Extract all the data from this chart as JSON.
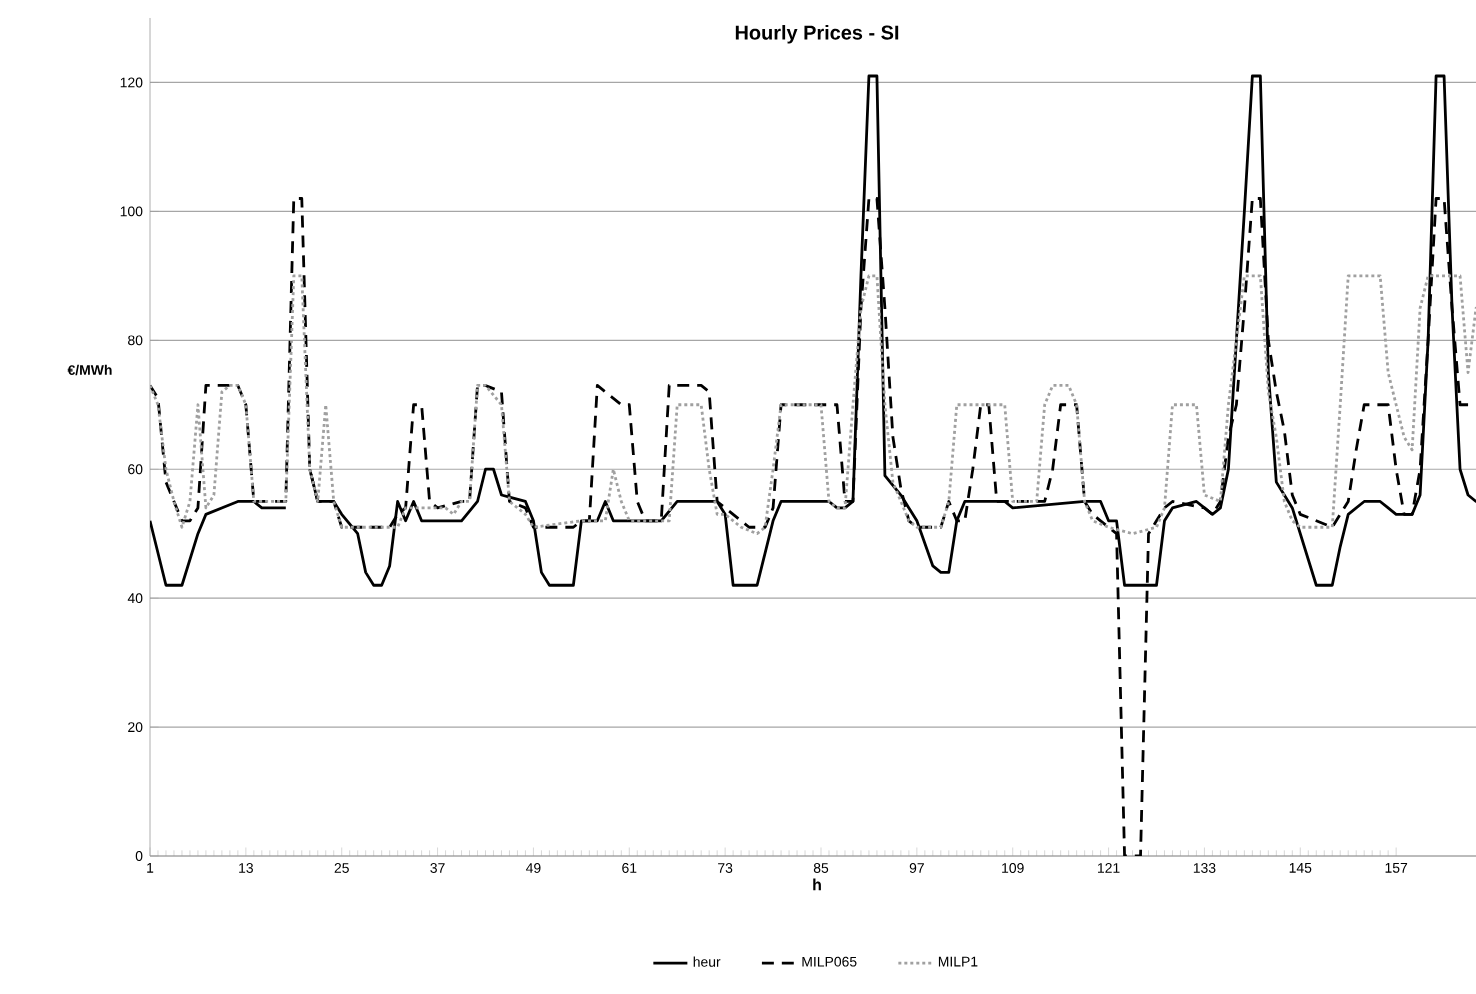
{
  "chart_data": {
    "type": "line",
    "title": "Hourly Prices - SI",
    "xlabel": "h",
    "ylabel": "€/MWh",
    "xlim": [
      1,
      168
    ],
    "xticks": [
      1,
      13,
      25,
      37,
      49,
      61,
      73,
      85,
      97,
      109,
      121,
      133,
      145,
      157
    ],
    "ylim": [
      0,
      130
    ],
    "yticks": [
      0,
      20,
      40,
      60,
      80,
      100,
      120
    ],
    "grid": "y",
    "legend": "bottom",
    "series": [
      {
        "name": "heur",
        "color": "#000000",
        "line_style": "solid",
        "x": [
          1,
          3,
          5,
          7,
          8,
          10,
          12,
          14,
          15,
          18,
          19,
          20,
          21,
          22,
          24,
          25,
          27,
          28,
          29,
          30,
          31,
          32,
          33,
          34,
          35,
          40,
          42,
          43,
          44,
          45,
          48,
          49,
          50,
          51,
          54,
          55,
          57,
          58,
          59,
          65,
          67,
          72,
          73,
          74,
          77,
          79,
          80,
          86,
          87,
          88,
          89,
          90,
          91,
          92,
          93,
          95,
          96,
          97,
          99,
          100,
          101,
          102,
          103,
          108,
          109,
          118,
          120,
          121,
          122,
          123,
          127,
          128,
          129,
          132,
          133,
          134,
          135,
          136,
          137,
          138,
          139,
          140,
          141,
          142,
          143,
          144,
          146,
          147,
          149,
          150,
          151,
          153,
          155,
          156,
          157,
          159,
          160,
          161,
          162,
          163,
          164,
          165,
          166,
          167,
          168
        ],
        "values": [
          52,
          42,
          42,
          50,
          53,
          54,
          55,
          55,
          54,
          54,
          null,
          null,
          60,
          55,
          55,
          53,
          50,
          44,
          42,
          42,
          45,
          55,
          52,
          55,
          52,
          52,
          55,
          60,
          60,
          56,
          55,
          52,
          44,
          42,
          42,
          52,
          52,
          55,
          52,
          52,
          55,
          55,
          53,
          42,
          42,
          52,
          55,
          55,
          54,
          54,
          55,
          90,
          121,
          121,
          59,
          56,
          54,
          52,
          45,
          44,
          44,
          52,
          55,
          55,
          54,
          55,
          55,
          52,
          52,
          42,
          42,
          52,
          54,
          55,
          54,
          53,
          54,
          60,
          80,
          100,
          121,
          121,
          75,
          58,
          56,
          54,
          46,
          42,
          42,
          48,
          53,
          55,
          55,
          54,
          53,
          53,
          56,
          80,
          121,
          121,
          85,
          60,
          56,
          55,
          55
        ]
      },
      {
        "name": "MILP065",
        "color": "#000000",
        "line_style": "dashed",
        "x": [
          1,
          2,
          3,
          5,
          6,
          7,
          8,
          9,
          12,
          13,
          14,
          18,
          19,
          20,
          21,
          22,
          24,
          25,
          31,
          32,
          33,
          34,
          35,
          36,
          37,
          40,
          41,
          42,
          43,
          45,
          46,
          48,
          49,
          54,
          55,
          56,
          57,
          58,
          60,
          61,
          62,
          63,
          65,
          66,
          70,
          71,
          72,
          73,
          76,
          78,
          79,
          80,
          87,
          88,
          89,
          90,
          91,
          92,
          93,
          94,
          95,
          96,
          97,
          100,
          101,
          102,
          103,
          104,
          105,
          106,
          107,
          109,
          113,
          114,
          115,
          117,
          118,
          119,
          120,
          121,
          122,
          123,
          125,
          126,
          127,
          128,
          129,
          133,
          134,
          135,
          136,
          137,
          138,
          139,
          140,
          141,
          142,
          143,
          144,
          145,
          149,
          150,
          151,
          152,
          153,
          156,
          157,
          158,
          159,
          160,
          161,
          162,
          163,
          164,
          165,
          168
        ],
        "values": [
          73,
          71,
          58,
          52,
          52,
          54,
          73,
          73,
          73,
          70,
          55,
          55,
          102,
          102,
          60,
          55,
          55,
          51,
          51,
          53,
          54,
          70,
          70,
          55,
          54,
          55,
          55,
          73,
          73,
          72,
          55,
          54,
          51,
          51,
          52,
          52,
          73,
          72,
          70,
          70,
          55,
          52,
          52,
          73,
          73,
          72,
          55,
          54,
          51,
          51,
          54,
          70,
          70,
          55,
          55,
          85,
          102,
          102,
          85,
          65,
          57,
          52,
          51,
          51,
          55,
          52,
          52,
          60,
          70,
          70,
          55,
          55,
          55,
          60,
          70,
          70,
          55,
          53,
          52,
          51,
          50,
          0,
          0,
          50,
          52,
          54,
          55,
          54,
          53,
          55,
          65,
          70,
          85,
          102,
          102,
          80,
          72,
          66,
          56,
          53,
          51,
          53,
          55,
          63,
          70,
          70,
          60,
          53,
          53,
          60,
          80,
          102,
          102,
          85,
          70,
          70
        ]
      },
      {
        "name": "MILP1",
        "color": "#a0a0a0",
        "line_style": "dotted",
        "x": [
          1,
          2,
          3,
          4,
          5,
          6,
          7,
          8,
          9,
          10,
          11,
          12,
          13,
          14,
          18,
          19,
          20,
          21,
          22,
          23,
          24,
          25,
          32,
          33,
          38,
          39,
          40,
          41,
          42,
          43,
          45,
          46,
          48,
          49,
          55,
          58,
          59,
          60,
          61,
          62,
          66,
          67,
          70,
          71,
          72,
          73,
          75,
          77,
          78,
          79,
          80,
          85,
          86,
          87,
          88,
          89,
          90,
          91,
          92,
          93,
          94,
          95,
          96,
          97,
          100,
          101,
          102,
          108,
          109,
          112,
          113,
          114,
          116,
          117,
          118,
          119,
          121,
          124,
          127,
          128,
          129,
          132,
          133,
          135,
          136,
          137,
          138,
          140,
          141,
          142,
          143,
          144,
          145,
          149,
          150,
          151,
          155,
          156,
          157,
          158,
          159,
          160,
          161,
          165,
          166,
          167,
          168
        ],
        "values": [
          73,
          70,
          60,
          55,
          51,
          55,
          70,
          54,
          56,
          72,
          73,
          73,
          70,
          55,
          55,
          90,
          90,
          60,
          55,
          70,
          55,
          51,
          51,
          54,
          54,
          53,
          55,
          55,
          73,
          73,
          70,
          55,
          53,
          51,
          52,
          52,
          60,
          55,
          52,
          52,
          52,
          70,
          70,
          60,
          53,
          53,
          51,
          50,
          51,
          60,
          70,
          70,
          55,
          54,
          54,
          70,
          85,
          90,
          90,
          70,
          58,
          55,
          52,
          51,
          51,
          55,
          70,
          70,
          55,
          55,
          70,
          73,
          73,
          70,
          55,
          52,
          51,
          50,
          51,
          54,
          70,
          70,
          56,
          55,
          70,
          80,
          90,
          90,
          72,
          65,
          55,
          52,
          51,
          51,
          70,
          90,
          90,
          75,
          70,
          65,
          63,
          85,
          90,
          90,
          75,
          85,
          85
        ]
      }
    ]
  }
}
